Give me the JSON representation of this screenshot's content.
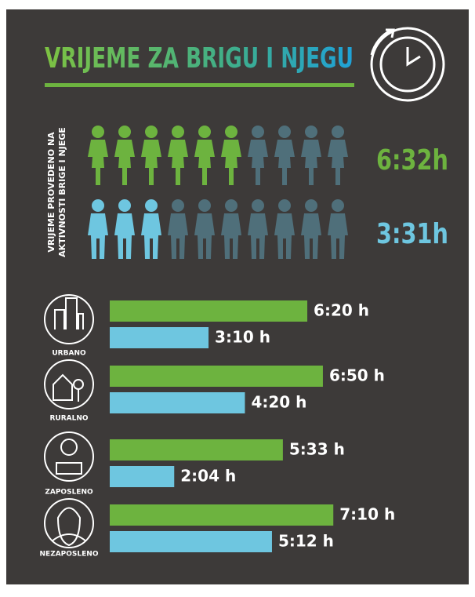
{
  "title": "VRIJEME ZA BRIGU I NJEGU",
  "side_label": [
    "VRIJEME PROVEDENO NA",
    "AKTIVNOSTI BRIGE I NJEGE"
  ],
  "pictogram": {
    "total": 10,
    "empty_color": "#4f6f7a",
    "rows": [
      {
        "value": 6.533,
        "label": "6:32h",
        "color": "#6db33f"
      },
      {
        "value": 3.517,
        "label": "3:31h",
        "color": "#6ec6e0"
      }
    ]
  },
  "chart_data": {
    "type": "bar",
    "orientation": "horizontal",
    "categories": [
      "URBANO",
      "RURALNO",
      "ZAPOSLENO",
      "NEZAPOSLENO"
    ],
    "series": [
      {
        "color": "#6db33f",
        "values": [
          6.333,
          6.833,
          5.55,
          7.167
        ],
        "value_labels": [
          "6:20 h",
          "6:50 h",
          "5:33 h",
          "7:10 h"
        ]
      },
      {
        "color": "#6ec6e0",
        "values": [
          3.167,
          4.333,
          2.067,
          5.2
        ],
        "value_labels": [
          "3:10 h",
          "4:20 h",
          "2:04 h",
          "5:12 h"
        ]
      }
    ]
  }
}
